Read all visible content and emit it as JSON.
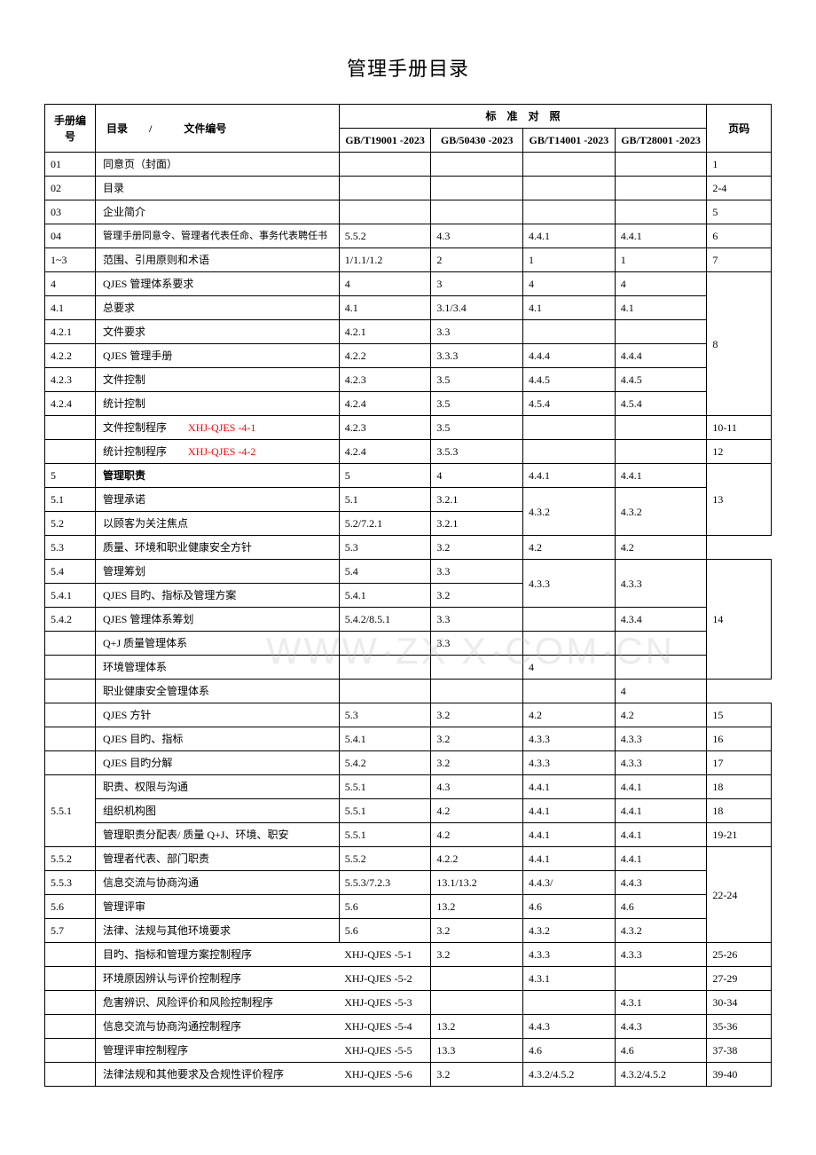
{
  "title": "管理手册目录",
  "headers": {
    "num": "手册编号",
    "dir": "目录　　/　　　文件编号",
    "std_group": "标　准　对　照",
    "page": "页码",
    "std1": "GB/T19001 -2023",
    "std2": "GB/50430 -2023",
    "std3": "GB/T14001 -2023",
    "std4": "GB/T28001 -2023"
  },
  "watermark": "WWW ZX X COM CN",
  "rows": [
    {
      "num": "01",
      "dir": "同意页（封面）",
      "s1": "",
      "s2": "",
      "s3": "",
      "s4": "",
      "page": "1"
    },
    {
      "num": "02",
      "dir": "目录",
      "s1": "",
      "s2": "",
      "s3": "",
      "s4": "",
      "page": "2-4"
    },
    {
      "num": "03",
      "dir": "企业简介",
      "s1": "",
      "s2": "",
      "s3": "",
      "s4": "",
      "page": "5"
    },
    {
      "num": "04",
      "dir": "管理手册同意令、管理者代表任命、事务代表聘任书",
      "small": true,
      "s1": "5.5.2",
      "s2": "4.3",
      "s3": "4.4.1",
      "s4": "4.4.1",
      "page": "6"
    },
    {
      "num": "1~3",
      "dir": "范围、引用原则和术语",
      "s1": "1/1.1/1.2",
      "s2": "2",
      "s3": "1",
      "s4": "1",
      "page": "7"
    },
    {
      "num": "4",
      "dir": "QJES 管理体系要求",
      "s1": "4",
      "s2": "3",
      "s3": "4",
      "s4": "4",
      "page": "8",
      "page_span": 6
    },
    {
      "num": "4.1",
      "dir": "总要求",
      "s1": "4.1",
      "s2": "3.1/3.4",
      "s3": "4.1",
      "s4": "4.1"
    },
    {
      "num": "4.2.1",
      "dir": "文件要求",
      "s1": "4.2.1",
      "s2": "3.3",
      "s3": "",
      "s4": ""
    },
    {
      "num": "4.2.2",
      "dir": "QJES 管理手册",
      "s1": "4.2.2",
      "s2": "3.3.3",
      "s3": "4.4.4",
      "s4": "4.4.4"
    },
    {
      "num": "4.2.3",
      "dir": "文件控制",
      "s1": "4.2.3",
      "s2": "3.5",
      "s3": "4.4.5",
      "s4": "4.4.5"
    },
    {
      "num": "4.2.4",
      "dir": "统计控制",
      "s1": "4.2.4",
      "s2": "3.5",
      "s3": "4.5.4",
      "s4": "4.5.4"
    },
    {
      "num": "",
      "dir_html": "文件控制程序　　<span class='red'>XHJ-QJES -4-1</span>",
      "s1": "4.2.3",
      "s2": "3.5",
      "s3": "",
      "s4": "",
      "page": "10-11"
    },
    {
      "num": "",
      "dir_html": "统计控制程序　　<span class='red'>XHJ-QJES -4-2</span>",
      "s1": "4.2.4",
      "s2": "3.5.3",
      "s3": "",
      "s4": "",
      "page": "12"
    },
    {
      "num": "5",
      "dir": "管理职责",
      "bold": true,
      "s1": "5",
      "s2": "4",
      "s3": "4.4.1",
      "s4": "4.4.1",
      "page": "13",
      "page_span": 3
    },
    {
      "num": "5.1",
      "dir": "管理承诺",
      "s1": "5.1",
      "s2": "3.2.1",
      "s3": "4.3.2",
      "s3_span": 2,
      "s4": "4.3.2",
      "s4_span": 2
    },
    {
      "num": "5.2",
      "dir": "以顾客为关注焦点",
      "s1": "5.2/7.2.1",
      "s2": "3.2.1"
    },
    {
      "num": "5.3",
      "dir": "质量、环境和职业健康安全方针",
      "s1": "5.3",
      "s2": "3.2",
      "s3": "4.2",
      "s4": "4.2"
    },
    {
      "num": "5.4",
      "dir": "管理筹划",
      "s1": "5.4",
      "s2": "3.3",
      "s3": "4.3.3",
      "s3_span": 2,
      "s4": "4.3.3",
      "s4_span": 2,
      "page": "14",
      "page_span": 5
    },
    {
      "num": "5.4.1",
      "dir": "QJES 目旳、指标及管理方案",
      "s1": "5.4.1",
      "s2": "3.2"
    },
    {
      "num": "5.4.2",
      "dir": "QJES 管理体系筹划",
      "s1": "5.4.2/8.5.1",
      "s2": "3.3",
      "s3": "",
      "s4": "4.3.4"
    },
    {
      "num": "",
      "dir": "Q+J 质量管理体系",
      "s1": "",
      "s2": "3.3",
      "s3": "",
      "s4": ""
    },
    {
      "num": "",
      "dir": "环境管理体系",
      "s1": "",
      "s2": "",
      "s3": "4",
      "s4": ""
    },
    {
      "num": "",
      "dir": "职业健康安全管理体系",
      "s1": "",
      "s2": "",
      "s3": "",
      "s4": "4"
    },
    {
      "num": "",
      "dir": "QJES 方针",
      "s1": "5.3",
      "s2": "3.2",
      "s3": "4.2",
      "s4": "4.2",
      "page": "15"
    },
    {
      "num": "",
      "dir": "QJES 目旳、指标",
      "s1": "5.4.1",
      "s2": "3.2",
      "s3": "4.3.3",
      "s4": "4.3.3",
      "page": "16"
    },
    {
      "num": "",
      "dir": "QJES 目旳分解",
      "s1": "5.4.2",
      "s2": "3.2",
      "s3": "4.3.3",
      "s4": "4.3.3",
      "page": "17"
    },
    {
      "num": "5.5.1",
      "num_span": 3,
      "dir": "职责、权限与沟通",
      "s1": "5.5.1",
      "s2": "4.3",
      "s3": "4.4.1",
      "s4": "4.4.1",
      "page": "18"
    },
    {
      "dir": "组织机构图",
      "s1": "5.5.1",
      "s2": "4.2",
      "s3": "4.4.1",
      "s4": "4.4.1",
      "page": "18"
    },
    {
      "dir": "管理职责分配表/ 质量 Q+J、环境、职安",
      "s1": "5.5.1",
      "s2": "4.2",
      "s3": "4.4.1",
      "s4": "4.4.1",
      "page": "19-21"
    },
    {
      "num": "5.5.2",
      "dir": "管理者代表、部门职责",
      "s1": "5.5.2",
      "s2": "4.2.2",
      "s3": "4.4.1",
      "s4": "4.4.1",
      "page": "22-24",
      "page_span": 4
    },
    {
      "num": "5.5.3",
      "dir": "信息交流与协商沟通",
      "s1": "5.5.3/7.2.3",
      "s2": "13.1/13.2",
      "s3": "4.4.3/",
      "s4": "4.4.3"
    },
    {
      "num": "5.6",
      "dir": "管理评审",
      "s1": "5.6",
      "s2": "13.2",
      "s3": "4.6",
      "s4": "4.6"
    },
    {
      "num": "5.7",
      "dir": "法律、法规与其他环境要求",
      "s1": "5.6",
      "s2": "3.2",
      "s3": "4.3.2",
      "s4": "4.3.2"
    },
    {
      "num": "",
      "dir_prog": "目旳、指标和管理方案控制程序",
      "prog": "XHJ-QJES -5-1",
      "s2": "3.2",
      "s3": "4.3.3",
      "s4": "4.3.3",
      "page": "25-26"
    },
    {
      "num": "",
      "dir_prog": "环境原因辨认与评价控制程序",
      "prog": "XHJ-QJES -5-2",
      "s2": "",
      "s3": "4.3.1",
      "s4": "",
      "page": "27-29"
    },
    {
      "num": "",
      "dir_prog": "危害辨识、风险评价和风险控制程序",
      "prog": "XHJ-QJES -5-3",
      "s2": "",
      "s3": "",
      "s4": "4.3.1",
      "page": "30-34"
    },
    {
      "num": "",
      "dir_prog": "信息交流与协商沟通控制程序",
      "prog": "XHJ-QJES -5-4",
      "s2": "13.2",
      "s3": "4.4.3",
      "s4": "4.4.3",
      "page": "35-36"
    },
    {
      "num": "",
      "dir_prog": "管理评审控制程序",
      "prog": "XHJ-QJES -5-5",
      "s2": "13.3",
      "s3": "4.6",
      "s4": "4.6",
      "page": "37-38"
    },
    {
      "num": "",
      "dir_prog": "法律法规和其他要求及合规性评价程序",
      "prog": "XHJ-QJES -5-6",
      "s2": "3.2",
      "s3": "4.3.2/4.5.2",
      "s4": "4.3.2/4.5.2",
      "page": "39-40"
    }
  ]
}
